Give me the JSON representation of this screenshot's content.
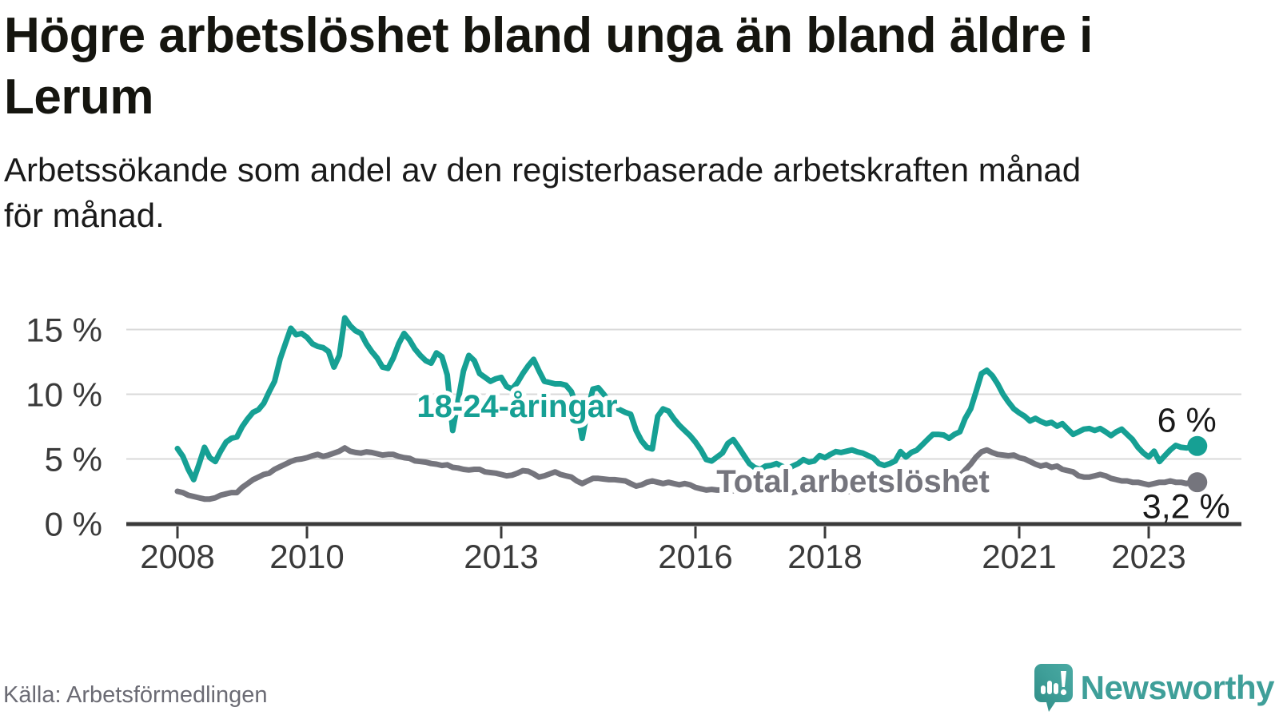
{
  "header": {
    "title": "Högre arbetslöshet bland unga än bland äldre i Lerum",
    "title_lines": [
      "Högre arbetslöshet bland unga än bland äldre i",
      "Lerum"
    ],
    "subtitle": "Arbetssökande som andel av den registerbaserade arbetskraften månad för månad.",
    "subtitle_lines": [
      "Arbetssökande som andel av den registerbaserade arbetskraften månad",
      "för månad."
    ]
  },
  "chart_data": {
    "type": "line",
    "title": "Högre arbetslöshet bland unga än bland äldre i Lerum",
    "subtitle": "Arbetssökande som andel av den registerbaserade arbetskraften månad för månad.",
    "unit": "%",
    "x_start_year": 2008,
    "points_per_year": 12,
    "x_ticks": [
      2008,
      2010,
      2013,
      2016,
      2018,
      2021,
      2023
    ],
    "x_tick_labels": [
      "2008",
      "2010",
      "2013",
      "2016",
      "2018",
      "2021",
      "2023"
    ],
    "y_ticks": [
      0,
      5,
      10,
      15
    ],
    "y_tick_labels": [
      "0 %",
      "5 %",
      "10 %",
      "15 %"
    ],
    "ylim": [
      0,
      16.5
    ],
    "grid": "horizontal",
    "legend_position": "inline-labels",
    "series": [
      {
        "name": "18-24-åringar",
        "color": "#16a094",
        "end_label": "6 %",
        "end_value": 6.0,
        "values": [
          5.8,
          5.2,
          4.2,
          3.4,
          4.6,
          5.9,
          5.1,
          4.8,
          5.6,
          6.3,
          6.6,
          6.7,
          7.5,
          8.1,
          8.6,
          8.8,
          9.3,
          10.2,
          11.0,
          12.7,
          13.9,
          15.1,
          14.6,
          14.7,
          14.4,
          13.9,
          13.7,
          13.6,
          13.3,
          12.1,
          13.0,
          15.9,
          15.3,
          14.9,
          14.7,
          13.9,
          13.3,
          12.8,
          12.1,
          12.0,
          12.8,
          13.9,
          14.7,
          14.2,
          13.5,
          13.0,
          12.6,
          12.4,
          13.2,
          12.9,
          11.5,
          7.2,
          9.5,
          11.8,
          13.0,
          12.6,
          11.6,
          11.3,
          11.0,
          11.2,
          11.3,
          10.6,
          10.4,
          10.9,
          11.6,
          12.2,
          12.7,
          11.8,
          11.0,
          10.9,
          10.8,
          10.8,
          10.7,
          10.2,
          9.0,
          6.6,
          8.8,
          10.4,
          10.5,
          10.0,
          9.4,
          9.0,
          8.8,
          8.6,
          8.45,
          7.2,
          6.4,
          5.9,
          5.77,
          8.3,
          8.87,
          8.7,
          8.1,
          7.6,
          7.2,
          6.8,
          6.3,
          5.7,
          4.95,
          4.84,
          5.15,
          5.46,
          6.2,
          6.5,
          5.9,
          5.26,
          4.64,
          4.33,
          4.2,
          4.45,
          4.5,
          4.64,
          4.45,
          4.2,
          4.45,
          4.64,
          4.95,
          4.76,
          4.84,
          5.26,
          5.1,
          5.35,
          5.57,
          5.5,
          5.6,
          5.7,
          5.55,
          5.45,
          5.26,
          5.07,
          4.64,
          4.5,
          4.64,
          4.84,
          5.57,
          5.15,
          5.5,
          5.68,
          6.08,
          6.5,
          6.9,
          6.9,
          6.85,
          6.6,
          6.9,
          7.1,
          8.14,
          8.87,
          10.2,
          11.6,
          11.85,
          11.44,
          10.8,
          10.0,
          9.4,
          8.87,
          8.56,
          8.3,
          7.93,
          8.14,
          7.9,
          7.73,
          7.83,
          7.54,
          7.73,
          7.3,
          6.9,
          7.1,
          7.3,
          7.35,
          7.2,
          7.35,
          7.1,
          6.8,
          7.1,
          7.3,
          6.9,
          6.5,
          5.9,
          5.46,
          5.15,
          5.6,
          4.8,
          5.26,
          5.7,
          6.05,
          5.9,
          5.85,
          5.9,
          6.0
        ]
      },
      {
        "name": "Total arbetslöshet",
        "color": "#75757d",
        "end_label": "3,2 %",
        "end_value": 3.2,
        "values": [
          2.5,
          2.4,
          2.2,
          2.1,
          2.0,
          1.9,
          1.9,
          2.0,
          2.2,
          2.3,
          2.4,
          2.4,
          2.8,
          3.1,
          3.4,
          3.6,
          3.8,
          3.9,
          4.2,
          4.4,
          4.6,
          4.8,
          4.95,
          5.0,
          5.1,
          5.25,
          5.35,
          5.2,
          5.3,
          5.45,
          5.6,
          5.85,
          5.6,
          5.5,
          5.45,
          5.55,
          5.5,
          5.4,
          5.3,
          5.35,
          5.35,
          5.2,
          5.1,
          5.05,
          4.85,
          4.8,
          4.75,
          4.65,
          4.6,
          4.5,
          4.55,
          4.35,
          4.3,
          4.2,
          4.15,
          4.2,
          4.2,
          4.0,
          3.95,
          3.9,
          3.8,
          3.7,
          3.75,
          3.9,
          4.1,
          4.05,
          3.85,
          3.6,
          3.7,
          3.85,
          4.0,
          3.8,
          3.7,
          3.6,
          3.3,
          3.1,
          3.3,
          3.5,
          3.5,
          3.45,
          3.4,
          3.4,
          3.35,
          3.3,
          3.1,
          2.9,
          3.0,
          3.2,
          3.3,
          3.2,
          3.1,
          3.2,
          3.1,
          3.0,
          3.1,
          3.0,
          2.8,
          2.7,
          2.6,
          2.65,
          2.6,
          2.6,
          2.5,
          2.55,
          2.5,
          2.55,
          2.5,
          2.6,
          2.7,
          2.6,
          2.6,
          2.5,
          2.5,
          2.5,
          2.4,
          2.5,
          2.5,
          2.6,
          2.6,
          2.6,
          2.7,
          2.7,
          2.6,
          2.6,
          2.5,
          2.5,
          2.5,
          2.6,
          2.6,
          2.7,
          2.7,
          2.8,
          2.9,
          2.9,
          2.9,
          2.8,
          2.8,
          2.9,
          3.0,
          3.0,
          3.1,
          3.1,
          3.2,
          3.2,
          3.4,
          3.7,
          4.15,
          4.6,
          5.15,
          5.55,
          5.7,
          5.5,
          5.35,
          5.3,
          5.25,
          5.3,
          5.1,
          5.0,
          4.8,
          4.6,
          4.45,
          4.55,
          4.35,
          4.45,
          4.2,
          4.1,
          4.0,
          3.7,
          3.6,
          3.6,
          3.7,
          3.8,
          3.7,
          3.5,
          3.4,
          3.3,
          3.3,
          3.2,
          3.2,
          3.1,
          3.0,
          3.1,
          3.2,
          3.2,
          3.3,
          3.2,
          3.2,
          3.1,
          3.2,
          3.2
        ]
      }
    ]
  },
  "footer": {
    "source": "Källa: Arbetsförmedlingen",
    "brand": "Newsworthy"
  },
  "colors": {
    "young_series": "#16a094",
    "total_series": "#75757d",
    "axis_text": "#3a3a3a",
    "gridline": "#d9d9d9",
    "title_text": "#15150f",
    "source_text": "#6b6b74",
    "brand_teal": "#3f9f99",
    "brand_teal_dark": "#2e8c85",
    "background": "#ffffff"
  },
  "icons": {
    "brand_logo": "newsworthy-speech-bubble-chart-icon"
  }
}
